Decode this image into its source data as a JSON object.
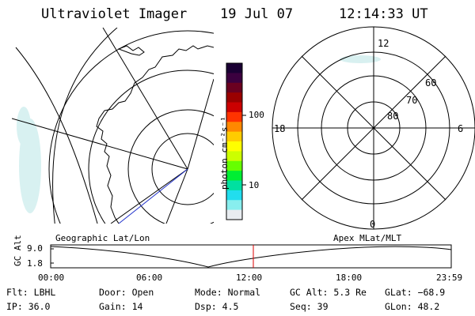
{
  "header": {
    "instrument": "Ultraviolet Imager",
    "date": "19 Jul 07",
    "time": "12:14:33 UT"
  },
  "geo_map": {
    "caption": "Geographic Lat/Lon"
  },
  "color_bar": {
    "unit_label": "photon cm⁻²s⁻¹",
    "ticks": [
      "100",
      "10"
    ],
    "colors": [
      "#1a0033",
      "#3b003f",
      "#6a0020",
      "#9a0000",
      "#cc0000",
      "#ff3300",
      "#ff8800",
      "#ffcc00",
      "#ffff00",
      "#ccff00",
      "#66ff00",
      "#00ee33",
      "#00e0a0",
      "#22ddee",
      "#88eeee",
      "#e8ecf0"
    ]
  },
  "polar_plot": {
    "caption": "Apex MLat/MLT",
    "mlt_labels": {
      "top": "12",
      "bottom": "0",
      "left": "18",
      "right": "6"
    },
    "lat_labels": [
      "60",
      "70",
      "80"
    ]
  },
  "altitude_plot": {
    "axis_label": "GC Alt",
    "y_ticks": [
      "9.0",
      "1.8"
    ],
    "x_ticks": [
      "00:00",
      "06:00",
      "12:00",
      "18:00",
      "23:59"
    ],
    "marker_time": "12:14"
  },
  "status": [
    {
      "label": "Flt:",
      "value": "LBHL"
    },
    {
      "label": "Door:",
      "value": "Open"
    },
    {
      "label": "Mode:",
      "value": "Normal"
    },
    {
      "label": "GC Alt:",
      "value": "5.3 Re"
    },
    {
      "label": "GLat:",
      "value": "−68.9"
    },
    {
      "label": "IP:",
      "value": "36.0"
    },
    {
      "label": "Gain:",
      "value": "14"
    },
    {
      "label": "Dsp:",
      "value": "4.5"
    },
    {
      "label": "Seq:",
      "value": "39"
    },
    {
      "label": "GLon:",
      "value": "48.2"
    }
  ]
}
